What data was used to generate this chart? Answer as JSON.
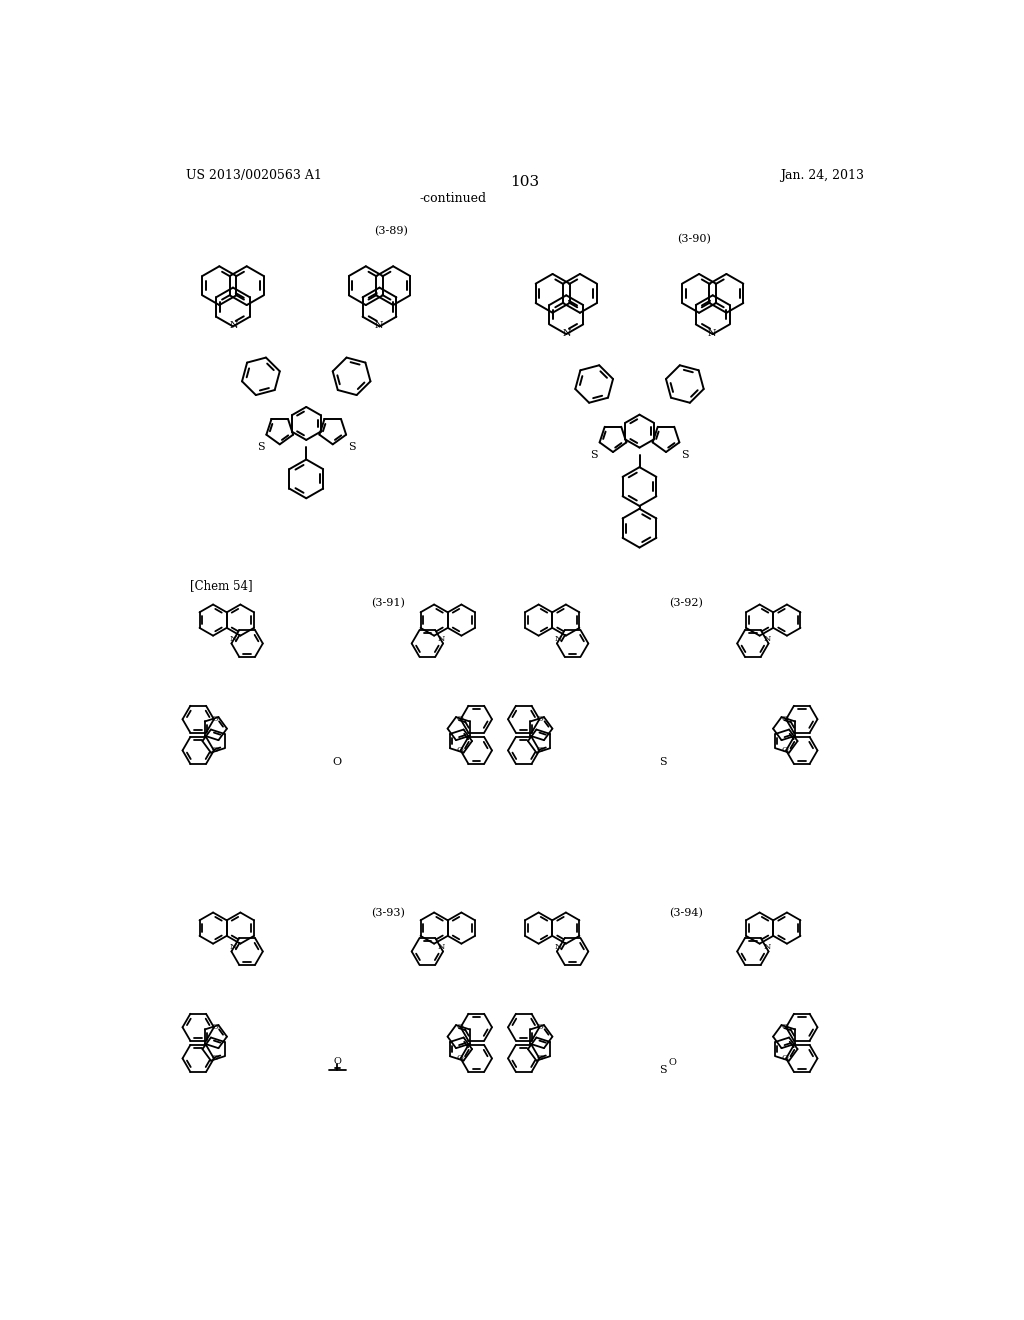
{
  "page_number": "103",
  "header_left": "US 2013/0020563 A1",
  "header_right": "Jan. 24, 2013",
  "continued_text": "-continued",
  "chem_label": "[Chem 54]",
  "compound_labels": [
    "(3-89)",
    "(3-90)",
    "(3-91)",
    "(3-92)",
    "(3-93)",
    "(3-94)"
  ],
  "background_color": "#ffffff",
  "text_color": "#000000"
}
